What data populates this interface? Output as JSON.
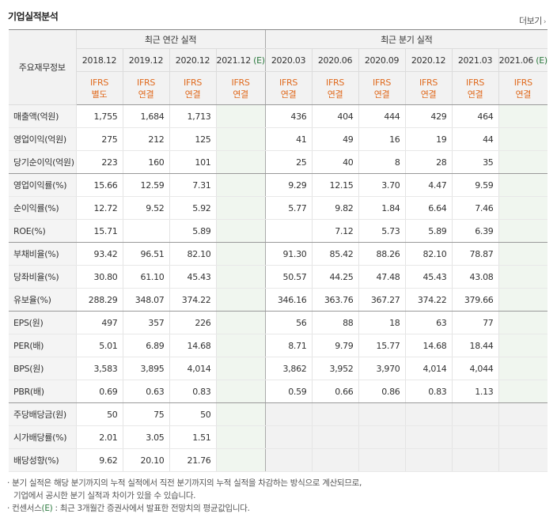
{
  "title": "기업실적분석",
  "more_label": "더보기",
  "header": {
    "corner": "주요재무정보",
    "annual_group": "최근 연간 실적",
    "quarter_group": "최근 분기 실적",
    "annual_periods": [
      "2018.12",
      "2019.12",
      "2020.12",
      "2021.12"
    ],
    "quarter_periods": [
      "2020.03",
      "2020.06",
      "2020.09",
      "2020.12",
      "2021.03",
      "2021.06"
    ],
    "estimate_mark": "(E)",
    "annual_basis": [
      [
        "IFRS",
        "별도"
      ],
      [
        "IFRS",
        "연결"
      ],
      [
        "IFRS",
        "연결"
      ],
      [
        "IFRS",
        "연결"
      ]
    ],
    "quarter_basis": [
      [
        "IFRS",
        "연결"
      ],
      [
        "IFRS",
        "연결"
      ],
      [
        "IFRS",
        "연결"
      ],
      [
        "IFRS",
        "연결"
      ],
      [
        "IFRS",
        "연결"
      ],
      [
        "IFRS",
        "연결"
      ]
    ]
  },
  "rows": [
    {
      "label": "매출액(억원)",
      "values": [
        "1,755",
        "1,684",
        "1,713",
        "",
        "436",
        "404",
        "444",
        "429",
        "464",
        ""
      ]
    },
    {
      "label": "영업이익(억원)",
      "values": [
        "275",
        "212",
        "125",
        "",
        "41",
        "49",
        "16",
        "19",
        "44",
        ""
      ]
    },
    {
      "label": "당기순이익(억원)",
      "values": [
        "223",
        "160",
        "101",
        "",
        "25",
        "40",
        "8",
        "28",
        "35",
        ""
      ]
    },
    {
      "label": "영업이익률(%)",
      "values": [
        "15.66",
        "12.59",
        "7.31",
        "",
        "9.29",
        "12.15",
        "3.70",
        "4.47",
        "9.59",
        ""
      ]
    },
    {
      "label": "순이익률(%)",
      "values": [
        "12.72",
        "9.52",
        "5.92",
        "",
        "5.77",
        "9.82",
        "1.84",
        "6.64",
        "7.46",
        ""
      ]
    },
    {
      "label": "ROE(%)",
      "values": [
        "15.71",
        "",
        "5.89",
        "",
        "",
        "7.12",
        "5.73",
        "5.89",
        "6.39",
        ""
      ]
    },
    {
      "label": "부채비율(%)",
      "values": [
        "93.42",
        "96.51",
        "82.10",
        "",
        "91.30",
        "85.42",
        "88.26",
        "82.10",
        "78.87",
        ""
      ]
    },
    {
      "label": "당좌비율(%)",
      "values": [
        "30.80",
        "61.10",
        "45.43",
        "",
        "50.57",
        "44.25",
        "47.48",
        "45.43",
        "43.08",
        ""
      ]
    },
    {
      "label": "유보율(%)",
      "values": [
        "288.29",
        "348.07",
        "374.22",
        "",
        "346.16",
        "363.76",
        "367.27",
        "374.22",
        "379.66",
        ""
      ]
    },
    {
      "label": "EPS(원)",
      "values": [
        "497",
        "357",
        "226",
        "",
        "56",
        "88",
        "18",
        "63",
        "77",
        ""
      ]
    },
    {
      "label": "PER(배)",
      "values": [
        "5.01",
        "6.89",
        "14.68",
        "",
        "8.71",
        "9.79",
        "15.77",
        "14.68",
        "18.44",
        ""
      ]
    },
    {
      "label": "BPS(원)",
      "values": [
        "3,583",
        "3,895",
        "4,014",
        "",
        "3,862",
        "3,952",
        "3,970",
        "4,014",
        "4,044",
        ""
      ]
    },
    {
      "label": "PBR(배)",
      "values": [
        "0.69",
        "0.63",
        "0.83",
        "",
        "0.59",
        "0.66",
        "0.86",
        "0.83",
        "1.13",
        ""
      ]
    },
    {
      "label": "주당배당금(원)",
      "values": [
        "50",
        "75",
        "50",
        "",
        "",
        "",
        "",
        "",
        "",
        ""
      ]
    },
    {
      "label": "시가배당률(%)",
      "values": [
        "2.01",
        "3.05",
        "1.51",
        "",
        "",
        "",
        "",
        "",
        "",
        ""
      ]
    },
    {
      "label": "배당성향(%)",
      "values": [
        "9.62",
        "20.10",
        "21.76",
        "",
        "",
        "",
        "",
        "",
        "",
        ""
      ]
    }
  ],
  "notes": {
    "line1": "분기 실적은 해당 분기까지의 누적 실적에서 직전 분기까지의 누적 실적을 차감하는 방식으로 계산되므로,",
    "line2": "기업에서 공시한 분기 실적과 차이가 있을 수 있습니다.",
    "line3_pre": "컨센서스",
    "line3_mark": "(E)",
    "line3_post": " : 최근 3개월간 증권사에서 발표한 전망치의 평균값입니다."
  }
}
